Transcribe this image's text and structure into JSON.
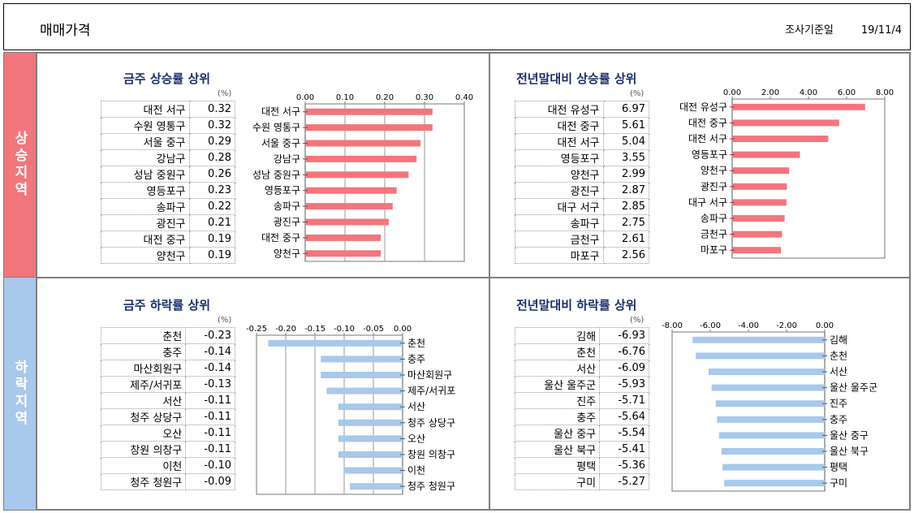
{
  "header": {
    "title": "매매가격",
    "survey_label": "조사기준일",
    "survey_date": "19/11/4"
  },
  "sides": {
    "rise": "상승지역",
    "fall": "하락지역"
  },
  "unit": "(%)",
  "colors": {
    "rise": "#f2767b",
    "fall": "#a8c8ec"
  },
  "panels": [
    {
      "title": "금주 상승률 상위",
      "rows": [
        {
          "name": "대전 서구",
          "value": "0.32"
        },
        {
          "name": "수원 영통구",
          "value": "0.32"
        },
        {
          "name": "서울 중구",
          "value": "0.29"
        },
        {
          "name": "강남구",
          "value": "0.28"
        },
        {
          "name": "성남 중원구",
          "value": "0.26"
        },
        {
          "name": "영등포구",
          "value": "0.23"
        },
        {
          "name": "송파구",
          "value": "0.22"
        },
        {
          "name": "광진구",
          "value": "0.21"
        },
        {
          "name": "대전 중구",
          "value": "0.19"
        },
        {
          "name": "양천구",
          "value": "0.19"
        }
      ]
    },
    {
      "title": "전년말대비 상승률 상위",
      "rows": [
        {
          "name": "대전 유성구",
          "value": "6.97"
        },
        {
          "name": "대전 중구",
          "value": "5.61"
        },
        {
          "name": "대전 서구",
          "value": "5.04"
        },
        {
          "name": "영등포구",
          "value": "3.55"
        },
        {
          "name": "양천구",
          "value": "2.99"
        },
        {
          "name": "광진구",
          "value": "2.87"
        },
        {
          "name": "대구 서구",
          "value": "2.85"
        },
        {
          "name": "송파구",
          "value": "2.75"
        },
        {
          "name": "금천구",
          "value": "2.61"
        },
        {
          "name": "마포구",
          "value": "2.56"
        }
      ]
    },
    {
      "title": "금주 하락률 상위",
      "rows": [
        {
          "name": "춘천",
          "value": "-0.23"
        },
        {
          "name": "충주",
          "value": "-0.14"
        },
        {
          "name": "마산회원구",
          "value": "-0.14"
        },
        {
          "name": "제주/서귀포",
          "value": "-0.13"
        },
        {
          "name": "서산",
          "value": "-0.11"
        },
        {
          "name": "청주 상당구",
          "value": "-0.11"
        },
        {
          "name": "오산",
          "value": "-0.11"
        },
        {
          "name": "창원 의창구",
          "value": "-0.11"
        },
        {
          "name": "이천",
          "value": "-0.10"
        },
        {
          "name": "청주 청원구",
          "value": "-0.09"
        }
      ]
    },
    {
      "title": "전년말대비 하락률 상위",
      "rows": [
        {
          "name": "김해",
          "value": "-6.93"
        },
        {
          "name": "춘천",
          "value": "-6.76"
        },
        {
          "name": "서산",
          "value": "-6.09"
        },
        {
          "name": "울산 울주군",
          "value": "-5.93"
        },
        {
          "name": "진주",
          "value": "-5.71"
        },
        {
          "name": "충주",
          "value": "-5.64"
        },
        {
          "name": "울산 중구",
          "value": "-5.54"
        },
        {
          "name": "울산 북구",
          "value": "-5.41"
        },
        {
          "name": "평택",
          "value": "-5.36"
        },
        {
          "name": "구미",
          "value": "-5.27"
        }
      ]
    }
  ],
  "chart_data": [
    {
      "type": "bar",
      "orientation": "horizontal",
      "title": "금주 상승률 상위",
      "categories": [
        "대전 서구",
        "수원 영통구",
        "서울 중구",
        "강남구",
        "성남 중원구",
        "영등포구",
        "송파구",
        "광진구",
        "대전 중구",
        "양천구"
      ],
      "values": [
        0.32,
        0.32,
        0.29,
        0.28,
        0.26,
        0.23,
        0.22,
        0.21,
        0.19,
        0.19
      ],
      "xlim": [
        0,
        0.4
      ],
      "ticks": [
        "0.00",
        "0.10",
        "0.20",
        "0.30",
        "0.40"
      ],
      "grid": true,
      "color": "#f2767b",
      "label_side": "left"
    },
    {
      "type": "bar",
      "orientation": "horizontal",
      "title": "전년말대비 상승률 상위",
      "categories": [
        "대전 유성구",
        "대전 중구",
        "대전 서구",
        "영등포구",
        "양천구",
        "광진구",
        "대구 서구",
        "송파구",
        "금천구",
        "마포구"
      ],
      "values": [
        6.97,
        5.61,
        5.04,
        3.55,
        2.99,
        2.87,
        2.85,
        2.75,
        2.61,
        2.56
      ],
      "xlim": [
        0,
        8
      ],
      "ticks": [
        "0.00",
        "2.00",
        "4.00",
        "6.00",
        "8.00"
      ],
      "grid": false,
      "color": "#f2767b",
      "label_side": "left"
    },
    {
      "type": "bar",
      "orientation": "horizontal",
      "title": "금주 하락률 상위",
      "categories": [
        "춘천",
        "충주",
        "마산회원구",
        "제주/서귀포",
        "서산",
        "청주 상당구",
        "오산",
        "창원 의창구",
        "이천",
        "청주 청원구"
      ],
      "values": [
        -0.23,
        -0.14,
        -0.14,
        -0.13,
        -0.11,
        -0.11,
        -0.11,
        -0.11,
        -0.1,
        -0.09
      ],
      "xlim": [
        -0.25,
        0
      ],
      "ticks": [
        "-0.25",
        "-0.20",
        "-0.15",
        "-0.10",
        "-0.05",
        "0.00"
      ],
      "grid": true,
      "color": "#a8c8ec",
      "label_side": "right"
    },
    {
      "type": "bar",
      "orientation": "horizontal",
      "title": "전년말대비 하락률 상위",
      "categories": [
        "김해",
        "춘천",
        "서산",
        "울산 울주군",
        "진주",
        "충주",
        "울산 중구",
        "울산 북구",
        "평택",
        "구미"
      ],
      "values": [
        -6.93,
        -6.76,
        -6.09,
        -5.93,
        -5.71,
        -5.64,
        -5.54,
        -5.41,
        -5.36,
        -5.27
      ],
      "xlim": [
        -8,
        0
      ],
      "ticks": [
        "-8.00",
        "-6.00",
        "-4.00",
        "-2.00",
        "0.00"
      ],
      "grid": false,
      "color": "#a8c8ec",
      "label_side": "right"
    }
  ]
}
